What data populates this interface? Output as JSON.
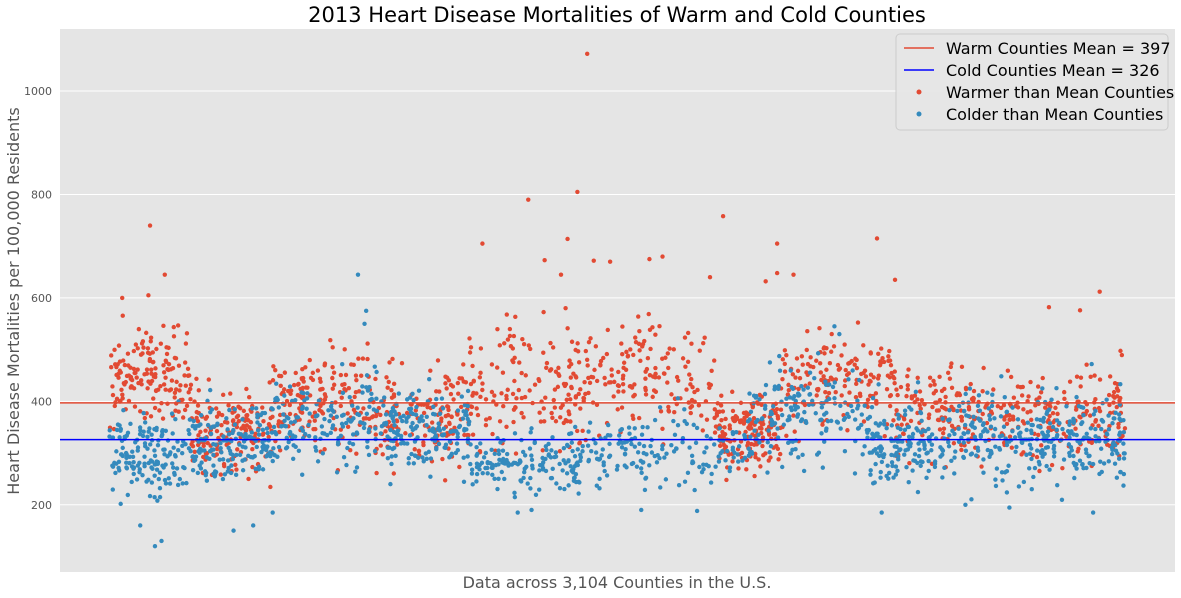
{
  "chart_data": {
    "type": "scatter",
    "title": "2013 Heart Disease Mortalities of Warm and Cold Counties",
    "xlabel": "Data across 3,104 Counties in the U.S.",
    "ylabel": "Heart Disease Mortalities per 100,000 Residents",
    "xlim": [
      -150,
      3255
    ],
    "ylim": [
      70,
      1120
    ],
    "y_ticks": [
      200,
      400,
      600,
      800,
      1000
    ],
    "grid": true,
    "legend_position": "top-right",
    "background": "#e5e5e5",
    "reference_lines": [
      {
        "label": "Warm Counties Mean = 397",
        "y": 397,
        "color": "#e24a33"
      },
      {
        "label": "Cold Counties Mean = 326",
        "y": 326,
        "color": "#0000ff"
      }
    ],
    "series": [
      {
        "name": "Warmer than Mean Counties",
        "color": "#e24a33",
        "note_count": 1550,
        "regions": [
          {
            "x": [
              0,
              250
            ],
            "center": 455,
            "spread": 55
          },
          {
            "x": [
              250,
              500
            ],
            "center": 345,
            "spread": 55
          },
          {
            "x": [
              500,
              800
            ],
            "center": 400,
            "spread": 60
          },
          {
            "x": [
              800,
              1100
            ],
            "center": 370,
            "spread": 55
          },
          {
            "x": [
              1100,
              1450
            ],
            "center": 430,
            "spread": 75
          },
          {
            "x": [
              1450,
              1850
            ],
            "center": 440,
            "spread": 70
          },
          {
            "x": [
              1850,
              2050
            ],
            "center": 345,
            "spread": 45
          },
          {
            "x": [
              2050,
              2400
            ],
            "center": 440,
            "spread": 60
          },
          {
            "x": [
              2400,
              2750
            ],
            "center": 380,
            "spread": 55
          },
          {
            "x": [
              2750,
              3104
            ],
            "center": 375,
            "spread": 60
          }
        ],
        "outliers": [
          {
            "x": 125,
            "y": 740
          },
          {
            "x": 170,
            "y": 645
          },
          {
            "x": 120,
            "y": 605
          },
          {
            "x": 40,
            "y": 600
          },
          {
            "x": 1140,
            "y": 705
          },
          {
            "x": 1280,
            "y": 790
          },
          {
            "x": 1430,
            "y": 805
          },
          {
            "x": 1460,
            "y": 1072
          },
          {
            "x": 1400,
            "y": 714
          },
          {
            "x": 1330,
            "y": 673
          },
          {
            "x": 1480,
            "y": 672
          },
          {
            "x": 1530,
            "y": 670
          },
          {
            "x": 1690,
            "y": 680
          },
          {
            "x": 1650,
            "y": 675
          },
          {
            "x": 1875,
            "y": 758
          },
          {
            "x": 1835,
            "y": 640
          },
          {
            "x": 2040,
            "y": 705
          },
          {
            "x": 2005,
            "y": 632
          },
          {
            "x": 2040,
            "y": 648
          },
          {
            "x": 2090,
            "y": 645
          },
          {
            "x": 2345,
            "y": 715
          },
          {
            "x": 2400,
            "y": 635
          },
          {
            "x": 2870,
            "y": 582
          },
          {
            "x": 3025,
            "y": 612
          },
          {
            "x": 2965,
            "y": 576
          },
          {
            "x": 1380,
            "y": 645
          }
        ]
      },
      {
        "name": "Colder than Mean Counties",
        "color": "#348abd",
        "note_count": 1554,
        "regions": [
          {
            "x": [
              0,
              250
            ],
            "center": 300,
            "spread": 55
          },
          {
            "x": [
              250,
              500
            ],
            "center": 310,
            "spread": 50
          },
          {
            "x": [
              500,
              850
            ],
            "center": 360,
            "spread": 55
          },
          {
            "x": [
              850,
              1100
            ],
            "center": 340,
            "spread": 55
          },
          {
            "x": [
              1100,
              1450
            ],
            "center": 275,
            "spread": 40
          },
          {
            "x": [
              1450,
              1950
            ],
            "center": 300,
            "spread": 45
          },
          {
            "x": [
              1950,
              2300
            ],
            "center": 380,
            "spread": 60
          },
          {
            "x": [
              2300,
              2550
            ],
            "center": 320,
            "spread": 55
          },
          {
            "x": [
              2550,
              2850
            ],
            "center": 330,
            "spread": 60
          },
          {
            "x": [
              2850,
              3104
            ],
            "center": 325,
            "spread": 55
          }
        ],
        "outliers": [
          {
            "x": 140,
            "y": 120
          },
          {
            "x": 160,
            "y": 130
          },
          {
            "x": 95,
            "y": 160
          },
          {
            "x": 380,
            "y": 150
          },
          {
            "x": 440,
            "y": 160
          },
          {
            "x": 760,
            "y": 645
          },
          {
            "x": 785,
            "y": 575
          },
          {
            "x": 780,
            "y": 550
          },
          {
            "x": 2215,
            "y": 545
          },
          {
            "x": 2230,
            "y": 530
          },
          {
            "x": 3005,
            "y": 185
          },
          {
            "x": 2615,
            "y": 200
          },
          {
            "x": 1290,
            "y": 190
          },
          {
            "x": 1625,
            "y": 190
          }
        ]
      }
    ],
    "legend": [
      {
        "label": "Warm Counties Mean = 397",
        "kind": "line",
        "color": "#e24a33"
      },
      {
        "label": "Cold Counties Mean = 326",
        "kind": "line",
        "color": "#0000ff"
      },
      {
        "label": "Warmer than Mean Counties",
        "kind": "marker",
        "color": "#e24a33"
      },
      {
        "label": "Colder than Mean Counties",
        "kind": "marker",
        "color": "#348abd"
      }
    ]
  }
}
